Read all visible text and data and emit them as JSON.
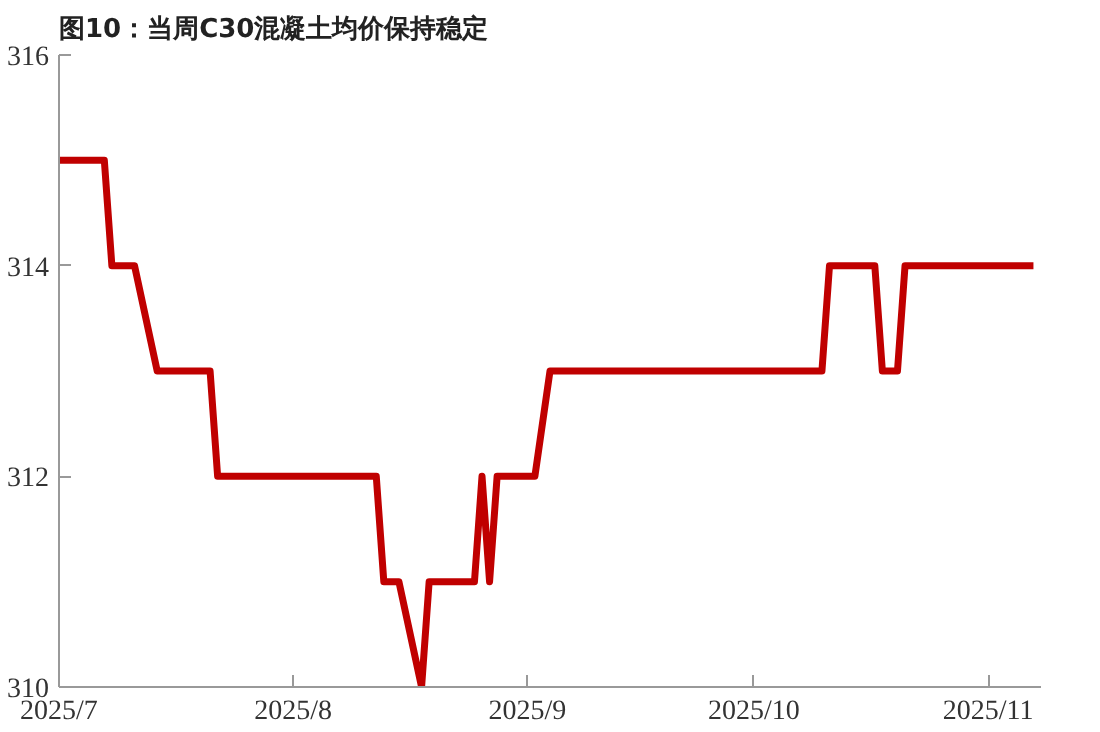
{
  "chart_data": {
    "type": "line",
    "title": "图10：当周C30混凝土均价保持稳定",
    "x": [
      "2025-07-01",
      "2025-07-07",
      "2025-07-08",
      "2025-07-11",
      "2025-07-14",
      "2025-07-21",
      "2025-07-22",
      "2025-08-12",
      "2025-08-13",
      "2025-08-15",
      "2025-08-18",
      "2025-08-19",
      "2025-08-25",
      "2025-08-26",
      "2025-08-27",
      "2025-08-28",
      "2025-09-02",
      "2025-09-04",
      "2025-10-10",
      "2025-10-11",
      "2025-10-17",
      "2025-10-18",
      "2025-10-20",
      "2025-10-21",
      "2025-11-07"
    ],
    "series": [
      {
        "color": "#c00000",
        "values": [
          315,
          315,
          314,
          314,
          313,
          313,
          312,
          312,
          311,
          311,
          310,
          311,
          311,
          312,
          311,
          312,
          312,
          313,
          313,
          314,
          314,
          313,
          313,
          314,
          314
        ]
      }
    ],
    "xlim": [
      "2025-07-01",
      "2025-11-08"
    ],
    "xticks": [
      {
        "value": "2025-07-01",
        "label": "2025/7"
      },
      {
        "value": "2025-08-01",
        "label": "2025/8"
      },
      {
        "value": "2025-09-01",
        "label": "2025/9"
      },
      {
        "value": "2025-10-01",
        "label": "2025/10"
      },
      {
        "value": "2025-11-01",
        "label": "2025/11"
      }
    ],
    "ylim": [
      310,
      316
    ],
    "yticks": [
      310,
      312,
      314,
      316
    ],
    "grid": false,
    "marker": "none",
    "line_style": "solid"
  }
}
